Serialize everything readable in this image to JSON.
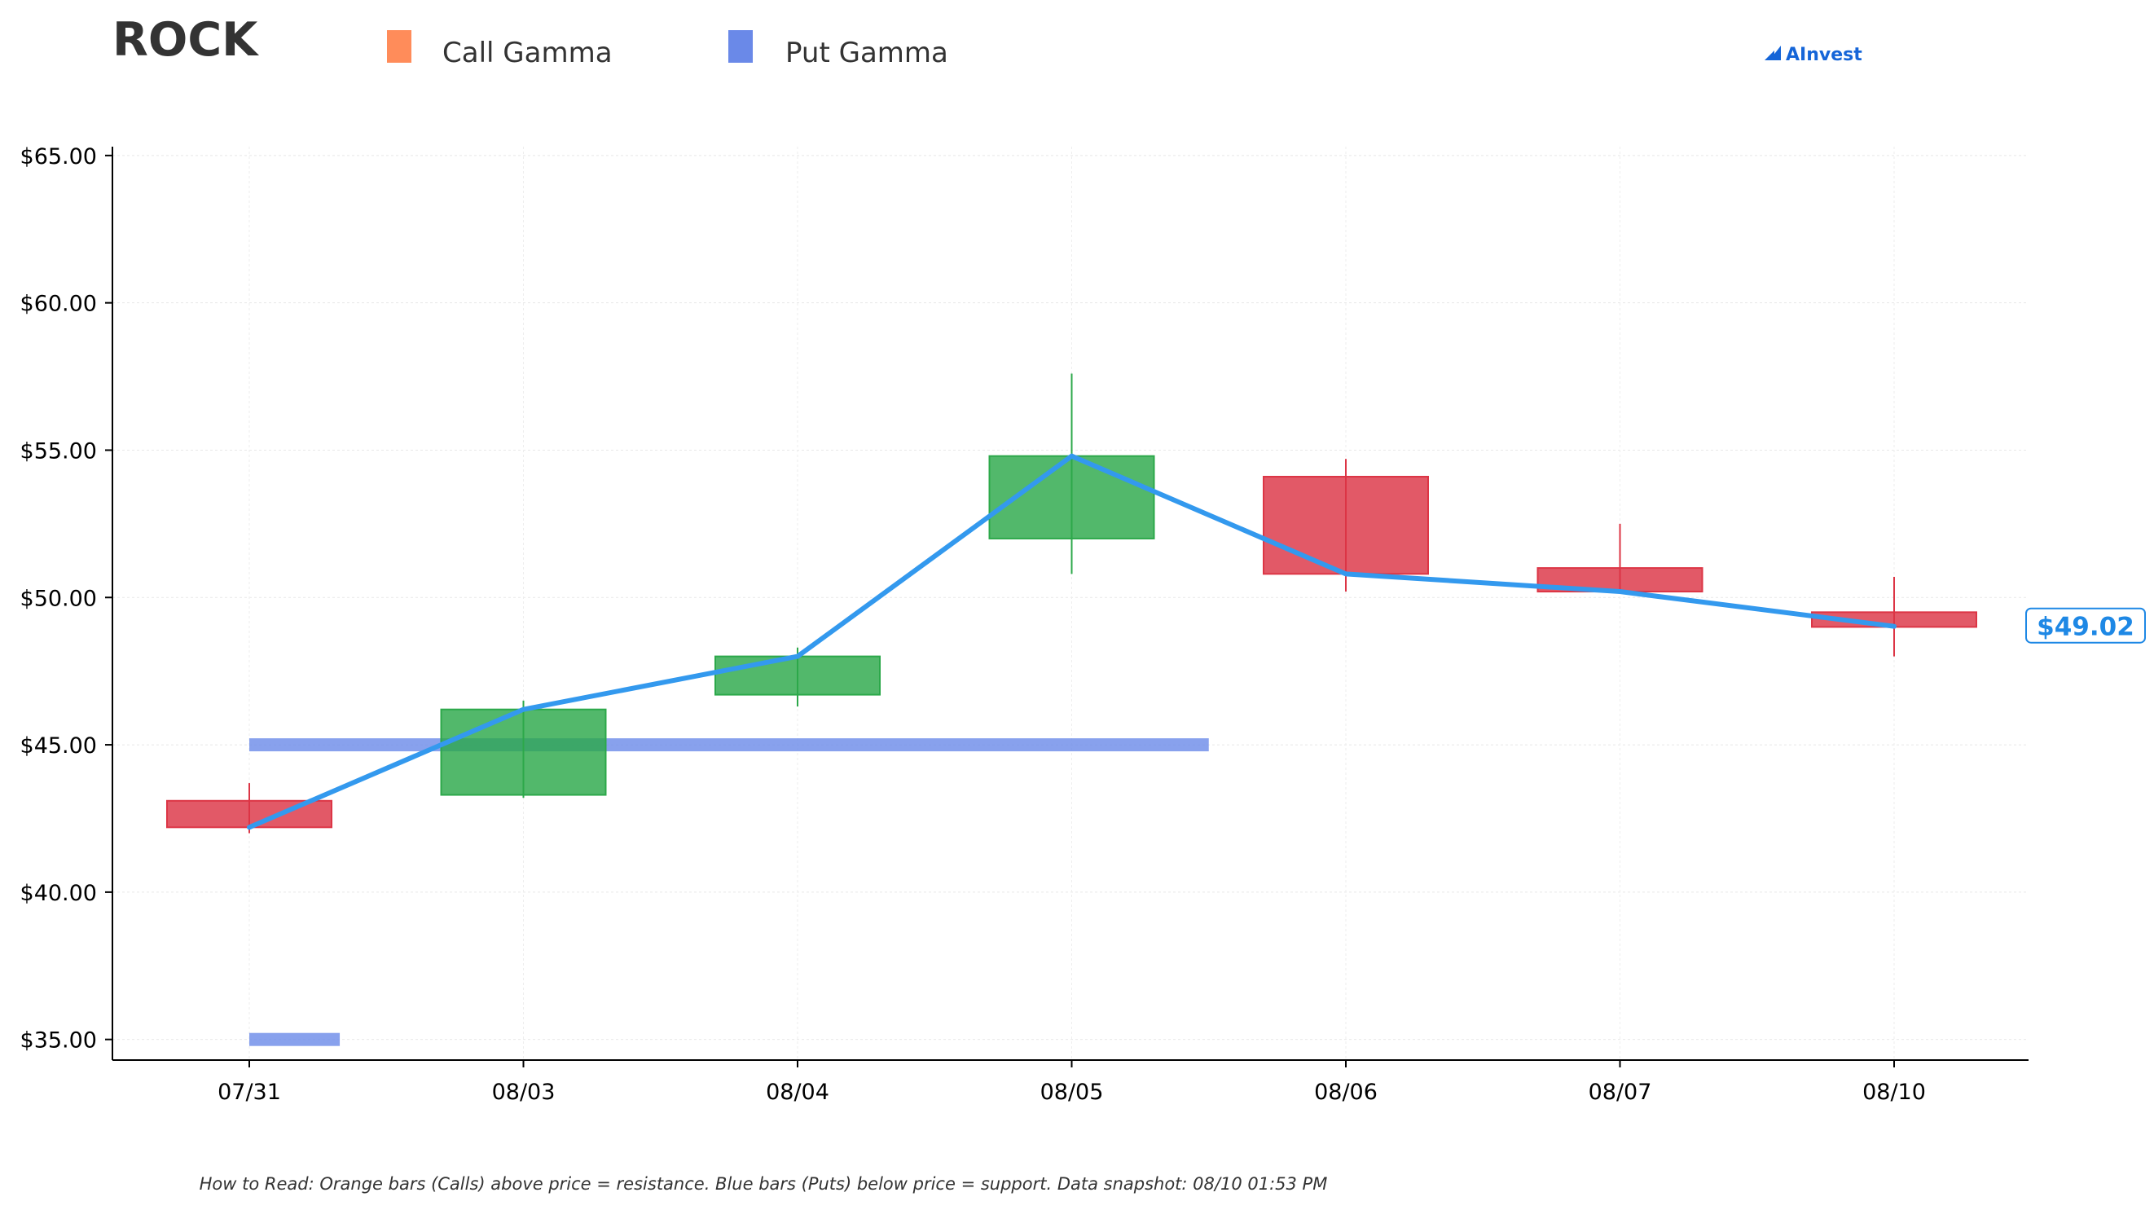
{
  "chart_data": {
    "type": "candlestick",
    "title": "ROCK",
    "legend": [
      {
        "name": "Call Gamma",
        "color": "#ff8c5a"
      },
      {
        "name": "Put Gamma",
        "color": "#6a89e8"
      }
    ],
    "legend_position": "top",
    "categories": [
      "07/31",
      "08/03",
      "08/04",
      "08/05",
      "08/06",
      "08/07",
      "08/10"
    ],
    "candles": [
      {
        "date": "07/31",
        "open": 43.1,
        "high": 43.7,
        "low": 42.0,
        "close": 42.2
      },
      {
        "date": "08/03",
        "open": 43.3,
        "high": 46.5,
        "low": 43.2,
        "close": 46.2
      },
      {
        "date": "08/04",
        "open": 46.7,
        "high": 48.3,
        "low": 46.3,
        "close": 48.0
      },
      {
        "date": "08/05",
        "open": 52.0,
        "high": 57.6,
        "low": 50.8,
        "close": 54.8
      },
      {
        "date": "08/06",
        "open": 54.1,
        "high": 54.7,
        "low": 50.2,
        "close": 50.8
      },
      {
        "date": "08/07",
        "open": 51.0,
        "high": 52.5,
        "low": 50.2,
        "close": 50.2
      },
      {
        "date": "08/10",
        "open": 49.5,
        "high": 50.7,
        "low": 48.0,
        "close": 49.0
      }
    ],
    "close_line": [
      42.2,
      46.2,
      48.0,
      54.8,
      50.8,
      50.2,
      49.02
    ],
    "put_gamma_bars": [
      {
        "level": 45.0,
        "from": "07/31",
        "span": 3.5
      },
      {
        "level": 35.0,
        "from": "07/31",
        "span": 0.33
      }
    ],
    "ylim": [
      34.3,
      65.3
    ],
    "yticks": [
      35,
      40,
      45,
      50,
      55,
      60,
      65
    ],
    "ytick_labels": [
      "$35.00",
      "$40.00",
      "$45.00",
      "$50.00",
      "$55.00",
      "$60.00",
      "$65.00"
    ],
    "grid": true,
    "current_price_label": "$49.02",
    "colors": {
      "up": "#2ca84a",
      "down": "#dc3545",
      "line": "#3399ee",
      "put_bar": "#6a89e8",
      "price_tag": "#1e88e5"
    },
    "brand": "AInvest",
    "footnote": "How to Read: Orange bars (Calls) above price = resistance. Blue bars (Puts) below price = support. Data snapshot: 08/10 01:53 PM"
  }
}
